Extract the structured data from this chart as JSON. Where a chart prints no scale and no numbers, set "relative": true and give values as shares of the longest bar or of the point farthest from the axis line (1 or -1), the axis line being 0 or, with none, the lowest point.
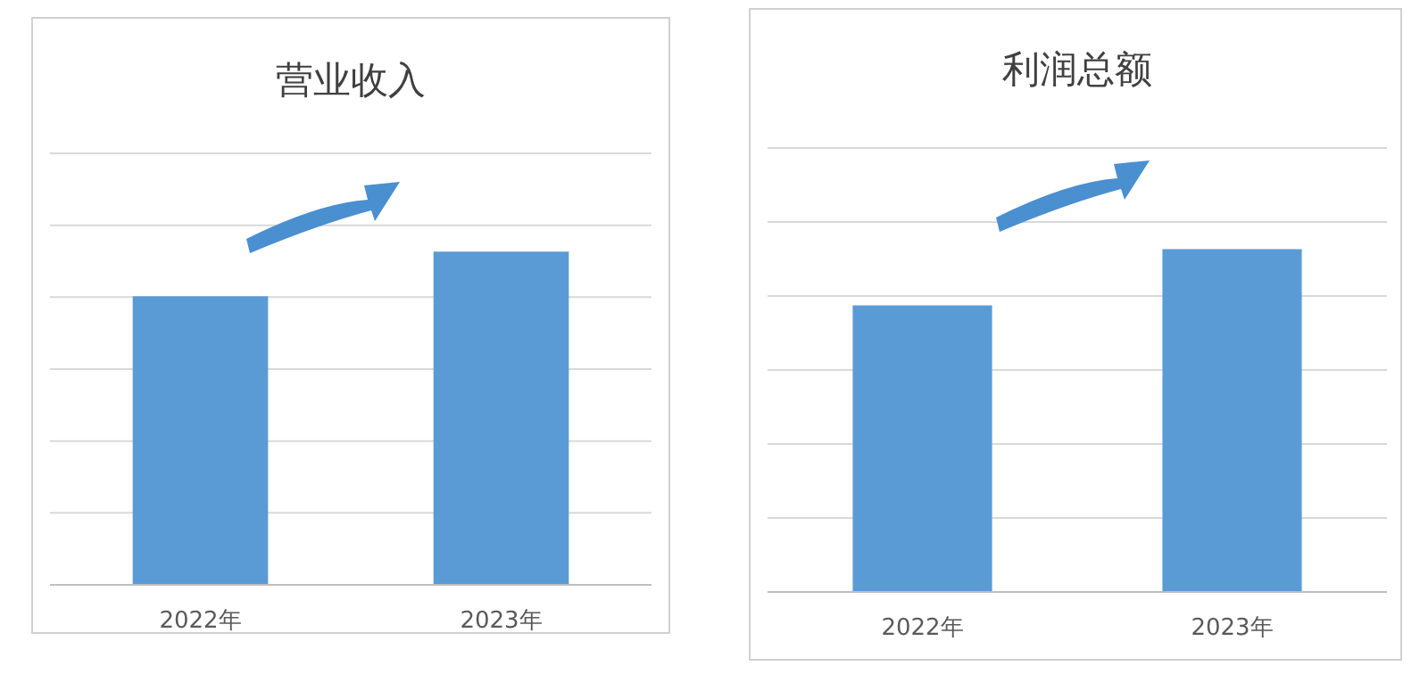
{
  "chart_data": [
    {
      "type": "bar",
      "title": "营业收入",
      "categories": [
        "2022年",
        "2023年"
      ],
      "values": [
        0.866,
        1
      ],
      "color": "#5b9bd5",
      "relative": true,
      "grid": true
    },
    {
      "type": "bar",
      "title": "利润总额",
      "categories": [
        "2022年",
        "2023年"
      ],
      "values": [
        0.836,
        1
      ],
      "color": "#5b9bd5",
      "relative": true,
      "grid": true
    }
  ]
}
